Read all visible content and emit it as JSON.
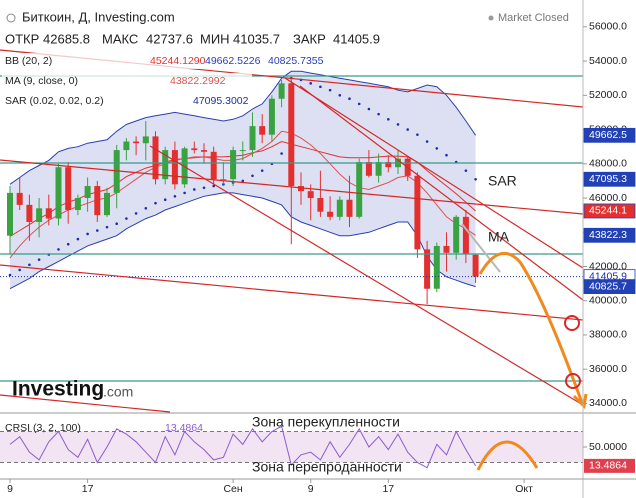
{
  "header": {
    "title": "Биткоин, Д, Investing.com",
    "status": "Market Closed",
    "ohlc_labels": [
      "ОТКР",
      "МАКС",
      "МИН",
      "ЗАКР"
    ]
  },
  "logo": {
    "brand": "Investing",
    "suffix": ".com"
  },
  "annotations": [
    "SAR",
    "MA",
    "Зона перекупленности",
    "Зона перепроданности"
  ],
  "chart_data": {
    "type": "candlestick",
    "categories": [
      "9",
      null,
      null,
      null,
      null,
      null,
      null,
      null,
      "17",
      null,
      null,
      null,
      null,
      null,
      null,
      null,
      null,
      null,
      null,
      null,
      null,
      null,
      null,
      "Сен",
      null,
      null,
      null,
      null,
      null,
      null,
      null,
      "9",
      null,
      null,
      null,
      null,
      null,
      null,
      null,
      "17",
      null,
      null,
      null,
      null,
      null,
      null,
      null,
      null,
      null,
      null,
      null,
      null,
      null,
      "Окт",
      null,
      null,
      null,
      null,
      null
    ],
    "open": [
      43800,
      46300,
      45600,
      44600,
      45400,
      44800,
      47800,
      45300,
      46000,
      46700,
      45000,
      46300,
      48800,
      49300,
      49200,
      49600,
      47100,
      48800,
      46800,
      48900,
      48800,
      48700,
      47100,
      47100,
      48800,
      48800,
      50200,
      49700,
      51800,
      52700,
      46700,
      46400,
      46000,
      45200,
      44900,
      45900,
      44900,
      48100,
      47300,
      48100,
      47800,
      48300,
      47300,
      43000,
      40700,
      43200,
      42800,
      44900,
      42685.8,
      null,
      null,
      null,
      null,
      null,
      null,
      null,
      null,
      null,
      null
    ],
    "high": [
      46700,
      47200,
      46200,
      46000,
      46200,
      48000,
      48100,
      46200,
      47200,
      47000,
      46600,
      49100,
      49500,
      49600,
      50500,
      49900,
      49000,
      49300,
      49000,
      49300,
      49200,
      49000,
      48100,
      49000,
      49300,
      51000,
      50900,
      52000,
      52900,
      52900,
      47500,
      46800,
      47600,
      46100,
      46100,
      47300,
      48300,
      48800,
      48600,
      48500,
      48800,
      48400,
      47500,
      43500,
      43400,
      44000,
      45000,
      45300,
      42737.6,
      null,
      null,
      null,
      null,
      null,
      null,
      null,
      null,
      null,
      null
    ],
    "low": [
      42700,
      45300,
      43500,
      43700,
      44400,
      44400,
      44500,
      45000,
      45200,
      44600,
      44900,
      45400,
      48200,
      48500,
      48200,
      46800,
      46800,
      46500,
      46600,
      48600,
      48000,
      46800,
      46800,
      46700,
      48200,
      48400,
      49200,
      49300,
      51300,
      43300,
      45600,
      44700,
      44900,
      44700,
      44700,
      44300,
      44800,
      47200,
      46900,
      47500,
      47400,
      47000,
      42500,
      39800,
      40500,
      41700,
      42400,
      42200,
      41035.7,
      null,
      null,
      null,
      null,
      null,
      null,
      null,
      null,
      null,
      null
    ],
    "close": [
      46300,
      45600,
      44600,
      45400,
      44800,
      47800,
      45300,
      46000,
      46700,
      45000,
      46300,
      48800,
      49300,
      49200,
      49600,
      47100,
      48800,
      46800,
      48900,
      48800,
      48700,
      47100,
      47100,
      48800,
      48800,
      50200,
      49700,
      51800,
      52700,
      46700,
      46400,
      46000,
      45200,
      44900,
      45900,
      44900,
      48100,
      47300,
      48100,
      47800,
      48300,
      47300,
      43000,
      40700,
      43200,
      42800,
      44900,
      42700,
      41405.9,
      null,
      null,
      null,
      null,
      null,
      null,
      null,
      null,
      null,
      null
    ],
    "up_color": "#3aa341",
    "down_color": "#e3302f",
    "ylim": [
      33500,
      57100
    ],
    "yticks": [
      {
        "value": 34000,
        "label": "34000.0"
      },
      {
        "value": 36000,
        "label": "36000.0"
      },
      {
        "value": 38000,
        "label": "38000.0"
      },
      {
        "value": 40000,
        "label": "40000.0"
      },
      {
        "value": 42000,
        "label": "42000.0"
      },
      {
        "value": 44000,
        "label": "44000.0"
      },
      {
        "value": 46000,
        "label": "46000.0"
      },
      {
        "value": 48000,
        "label": "48000.0"
      },
      {
        "value": 50000,
        "label": "50000.0"
      },
      {
        "value": 52000,
        "label": "52000.0"
      },
      {
        "value": 54000,
        "label": "54000.0"
      },
      {
        "value": 56000,
        "label": "56000.0"
      }
    ],
    "overlays": [
      {
        "name": "BB (20, 2)",
        "style": "band",
        "fill": "#cfd3ee",
        "lines": [
          {
            "color": "#e3302f",
            "value_label": "45244.1290",
            "values": [
              43750,
              44100,
              44450,
              44800,
              45100,
              45500,
              45750,
              45950,
              46200,
              46350,
              46500,
              46850,
              47250,
              47500,
              47750,
              47900,
              48100,
              48250,
              48300,
              48350,
              48400,
              48400,
              48400,
              48450,
              48500,
              48650,
              48750,
              49000,
              49300,
              49150,
              49000,
              48850,
              48700,
              48550,
              48400,
              48350,
              48350,
              48350,
              48400,
              48450,
              48450,
              48400,
              48100,
              47600,
              47150,
              46700,
              46250,
              45750,
              45244.129,
              null,
              null,
              null,
              null,
              null,
              null,
              null,
              null,
              null,
              null
            ]
          },
          {
            "color": "#2a3fb0",
            "value_label": "49662.5226",
            "values": [
              46800,
              47200,
              47600,
              47900,
              48200,
              48700,
              48900,
              49000,
              49200,
              49300,
              49400,
              49900,
              50300,
              50500,
              50700,
              50800,
              50900,
              51000,
              50900,
              50800,
              50700,
              50600,
              50500,
              50600,
              50800,
              51200,
              51500,
              52200,
              53000,
              53400,
              53400,
              53300,
              53200,
              53100,
              53000,
              52900,
              52800,
              52700,
              52600,
              52500,
              52300,
              52200,
              52400,
              52600,
              52500,
              52000,
              51300,
              50500,
              49662.5226,
              null,
              null,
              null,
              null,
              null,
              null,
              null,
              null,
              null,
              null
            ]
          },
          {
            "color": "#2a3fb0",
            "value_label": "40825.7355",
            "values": [
              40700,
              41000,
              41300,
              41700,
              42000,
              42300,
              42600,
              42900,
              43200,
              43400,
              43600,
              43800,
              44200,
              44500,
              44800,
              45000,
              45300,
              45500,
              45700,
              45900,
              46100,
              46200,
              46300,
              46300,
              46200,
              46100,
              46000,
              45800,
              45600,
              44900,
              44600,
              44400,
              44200,
              44000,
              43800,
              43800,
              43900,
              44000,
              44200,
              44400,
              44600,
              44600,
              43800,
              42600,
              41800,
              41400,
              41200,
              41000,
              40825.7355,
              null,
              null,
              null,
              null,
              null,
              null,
              null,
              null,
              null,
              null
            ]
          }
        ]
      },
      {
        "name": "MA (9, close, 0)",
        "style": "line",
        "lines": [
          {
            "color": "#e05050",
            "value_label": "43822.2992",
            "values": [
              42500,
              43200,
              43800,
              44300,
              44700,
              45000,
              45300,
              45500,
              45700,
              45900,
              46000,
              46300,
              46700,
              47100,
              47500,
              47800,
              48000,
              48200,
              48300,
              48400,
              48400,
              48300,
              48200,
              48200,
              48300,
              48600,
              48900,
              49300,
              49900,
              49800,
              49500,
              49100,
              48600,
              48000,
              47400,
              46900,
              46600,
              46500,
              46700,
              46900,
              47200,
              47300,
              46900,
              46300,
              45600,
              44900,
              44500,
              44200,
              43822.2992,
              null,
              null,
              null,
              null,
              null,
              null,
              null,
              null,
              null,
              null
            ]
          }
        ]
      },
      {
        "name": "SAR (0.02, 0.02, 0.2)",
        "style": "dots",
        "lines": [
          {
            "color": "#1c2fa8",
            "value_label": "47095.3002",
            "values": [
              41500,
              41800,
              42100,
              42400,
              42700,
              43000,
              43300,
              43600,
              43900,
              44100,
              44300,
              44500,
              44800,
              45100,
              45400,
              45700,
              45900,
              46100,
              46300,
              46500,
              46600,
              46700,
              46800,
              46900,
              47000,
              47300,
              47600,
              48000,
              48600,
              53000,
              52900,
              52700,
              52500,
              52300,
              52000,
              51800,
              51500,
              51200,
              50900,
              50600,
              50300,
              50000,
              49700,
              49300,
              48900,
              48500,
              48100,
              47600,
              47095.3002,
              null,
              null,
              null,
              null,
              null,
              null,
              null,
              null,
              null,
              null
            ]
          }
        ]
      }
    ],
    "badges": [
      {
        "value": 49662.5,
        "color": "#2141b5",
        "text_color": "#ffffff"
      },
      {
        "value": 47095.3,
        "color": "#2141b5",
        "text_color": "#ffffff"
      },
      {
        "value": 45244.1,
        "color": "#e3302f",
        "text_color": "#ffffff"
      },
      {
        "value": 43822.3,
        "color": "#2141b5",
        "text_color": "#ffffff"
      },
      {
        "value": 41405.9,
        "color": "#ffffff",
        "text_color": "#1c2fa8"
      },
      {
        "value": 40825.7,
        "color": "#2141b5",
        "text_color": "#ffffff"
      }
    ],
    "oscillator": {
      "name": "CRSI (3, 2, 100)",
      "color": "#8d5bd0",
      "band": [
        20,
        80
      ],
      "band_color": "#f2e4f2",
      "badge_color": "#e0404e",
      "ylim": [
        -10,
        110
      ],
      "yticks": [
        {
          "value": 50,
          "label": "50.0000"
        }
      ],
      "values": [
        55,
        70,
        40,
        25,
        60,
        80,
        45,
        30,
        65,
        20,
        50,
        85,
        75,
        60,
        40,
        20,
        70,
        35,
        80,
        60,
        45,
        25,
        30,
        75,
        55,
        85,
        60,
        80,
        90,
        15,
        35,
        40,
        25,
        60,
        30,
        55,
        85,
        50,
        70,
        45,
        75,
        40,
        20,
        10,
        55,
        35,
        80,
        45,
        13.4864,
        null,
        null,
        null,
        null,
        null,
        null,
        null,
        null,
        null,
        null
      ]
    }
  }
}
